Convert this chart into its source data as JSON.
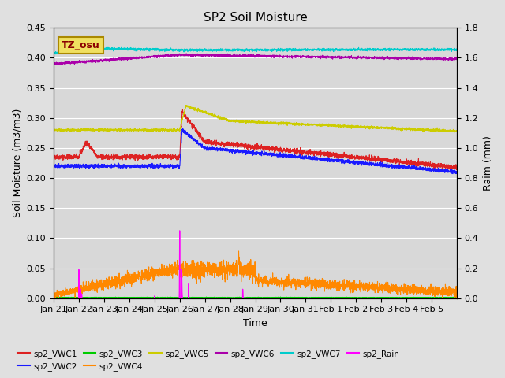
{
  "title": "SP2 Soil Moisture",
  "xlabel": "Time",
  "ylabel_left": "Soil Moisture (m3/m3)",
  "ylabel_right": "Raim (mm)",
  "ylim_left": [
    0,
    0.45
  ],
  "ylim_right": [
    0,
    1.8
  ],
  "background_color": "#d8d8d8",
  "tz_label": "TZ_osu",
  "tz_label_color": "#8B0000",
  "tz_box_color": "#f0e060",
  "colors": {
    "VWC1": "#dd2222",
    "VWC2": "#1a1aff",
    "VWC3": "#00cc00",
    "VWC4": "#ff8800",
    "VWC5": "#cccc00",
    "VWC6": "#aa00aa",
    "VWC7": "#00cccc",
    "Rain": "#ff00ff"
  },
  "legend_labels": [
    "sp2_VWC1",
    "sp2_VWC2",
    "sp2_VWC3",
    "sp2_VWC4",
    "sp2_VWC5",
    "sp2_VWC6",
    "sp2_VWC7",
    "sp2_Rain"
  ],
  "x_tick_labels": [
    "Jan 21",
    "Jan 22",
    "Jan 23",
    "Jan 24",
    "Jan 25",
    "Jan 26",
    "Jan 27",
    "Jan 28",
    "Jan 29",
    "Jan 30",
    "Jan 31",
    "Feb 1",
    "Feb 2",
    "Feb 3",
    "Feb 4",
    "Feb 5"
  ],
  "num_points": 3200
}
